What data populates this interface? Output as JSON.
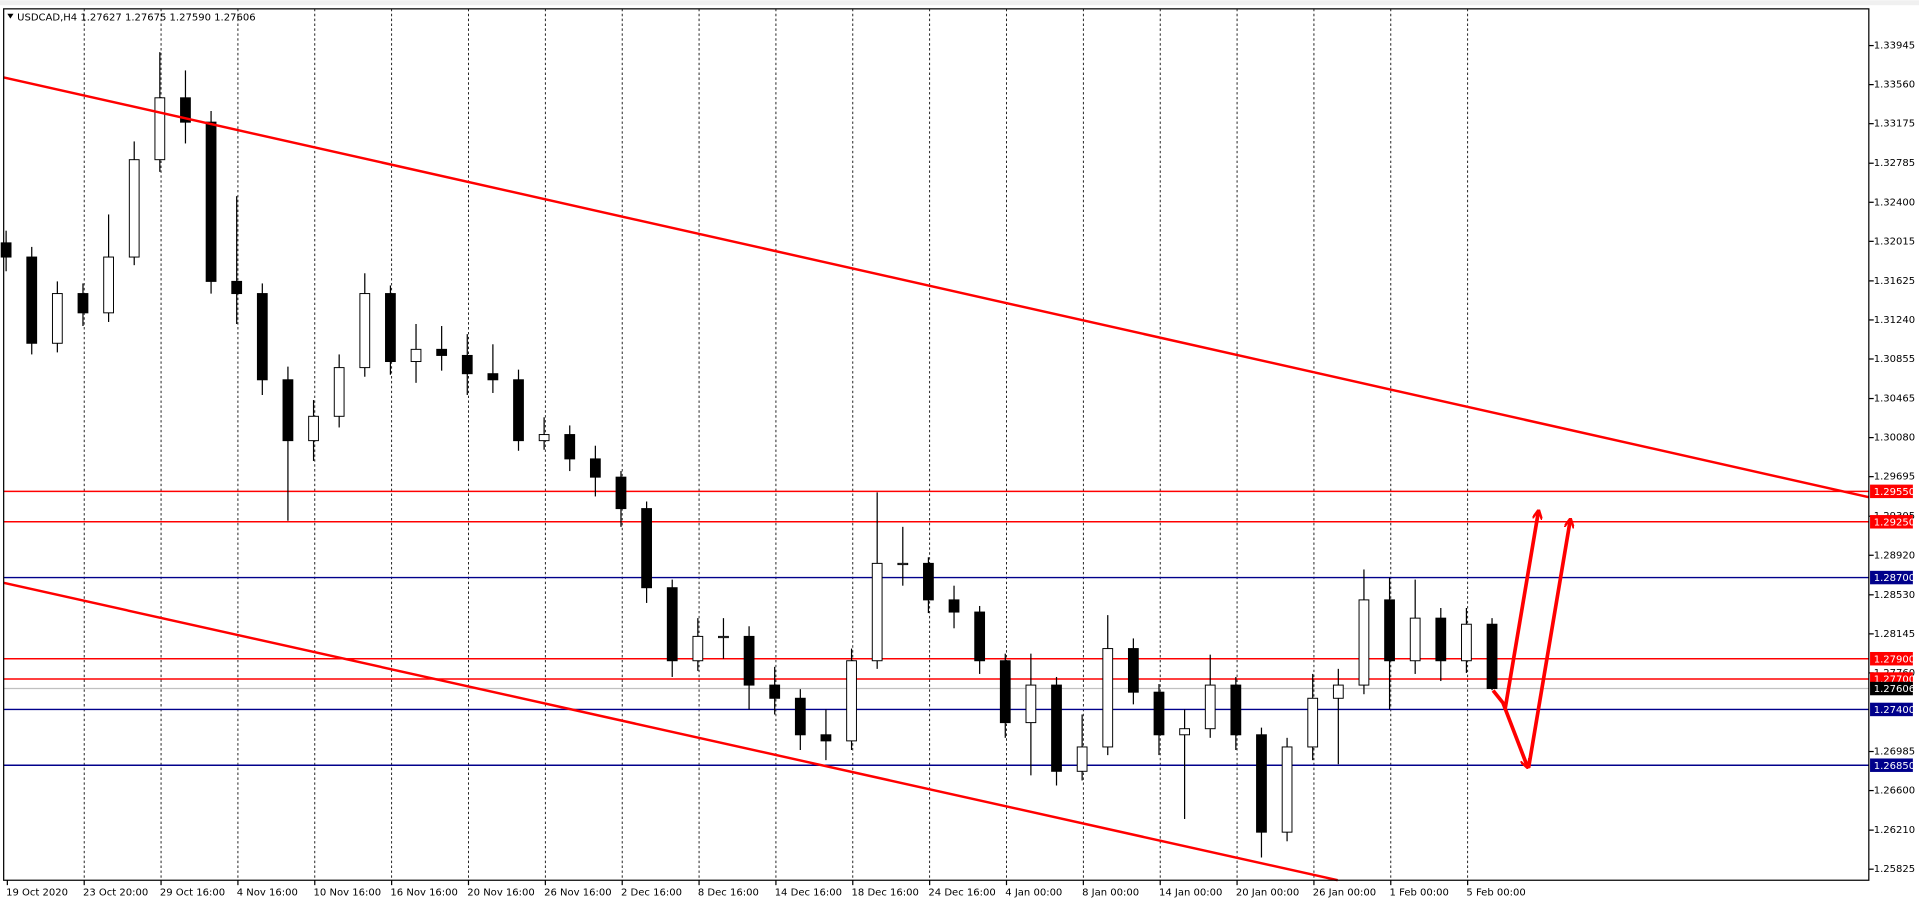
{
  "chart_data": {
    "type": "candlestick",
    "title": "USDCAD,H4  1.27627 1.27675 1.27590 1.27606",
    "categories": [
      "19 Oct 2020",
      "23 Oct 20:00",
      "29 Oct 16:00",
      "4 Nov 16:00",
      "10 Nov 16:00",
      "16 Nov 16:00",
      "20 Nov 16:00",
      "26 Nov 16:00",
      "2 Dec 16:00",
      "8 Dec 16:00",
      "14 Dec 16:00",
      "18 Dec 16:00",
      "24 Dec 16:00",
      "4 Jan 00:00",
      "8 Jan 00:00",
      "14 Jan 00:00",
      "20 Jan 00:00",
      "26 Jan 00:00",
      "1 Feb 00:00",
      "5 Feb 00:00"
    ],
    "candles": [
      [
        1.32,
        1.3212,
        1.3172,
        1.3186
      ],
      [
        1.3186,
        1.3196,
        1.309,
        1.3101
      ],
      [
        1.3101,
        1.3162,
        1.3092,
        1.315
      ],
      [
        1.315,
        1.316,
        1.3118,
        1.3131
      ],
      [
        1.3131,
        1.3228,
        1.3122,
        1.3186
      ],
      [
        1.3186,
        1.33,
        1.3178,
        1.3282
      ],
      [
        1.3282,
        1.3388,
        1.327,
        1.3343
      ],
      [
        1.3343,
        1.337,
        1.3298,
        1.3319
      ],
      [
        1.3319,
        1.333,
        1.315,
        1.3162
      ],
      [
        1.3162,
        1.3246,
        1.312,
        1.315
      ],
      [
        1.315,
        1.316,
        1.305,
        1.3065
      ],
      [
        1.3065,
        1.3078,
        1.2926,
        1.3005
      ],
      [
        1.3005,
        1.3045,
        1.2985,
        1.3029
      ],
      [
        1.3029,
        1.309,
        1.3018,
        1.3077
      ],
      [
        1.3077,
        1.317,
        1.3068,
        1.315
      ],
      [
        1.315,
        1.3158,
        1.307,
        1.3083
      ],
      [
        1.3083,
        1.312,
        1.3062,
        1.3095
      ],
      [
        1.3095,
        1.3118,
        1.3074,
        1.3089
      ],
      [
        1.3089,
        1.311,
        1.305,
        1.3071
      ],
      [
        1.3071,
        1.31,
        1.3052,
        1.3065
      ],
      [
        1.3065,
        1.3075,
        1.2995,
        1.3005
      ],
      [
        1.3005,
        1.3028,
        1.2996,
        1.3011
      ],
      [
        1.3011,
        1.302,
        1.2975,
        1.2987
      ],
      [
        1.2987,
        1.3,
        1.295,
        1.2969
      ],
      [
        1.2969,
        1.2975,
        1.292,
        1.2938
      ],
      [
        1.2938,
        1.2945,
        1.2845,
        1.286
      ],
      [
        1.286,
        1.2868,
        1.2772,
        1.2788
      ],
      [
        1.2788,
        1.283,
        1.2778,
        1.2812
      ],
      [
        1.2812,
        1.283,
        1.279,
        1.2812
      ],
      [
        1.2812,
        1.2822,
        1.274,
        1.2764
      ],
      [
        1.2764,
        1.2782,
        1.2735,
        1.2751
      ],
      [
        1.2751,
        1.276,
        1.27,
        1.2715
      ],
      [
        1.2715,
        1.274,
        1.269,
        1.2709
      ],
      [
        1.2709,
        1.28,
        1.27,
        1.2788
      ],
      [
        1.2788,
        1.2954,
        1.278,
        1.2884
      ],
      [
        1.2884,
        1.292,
        1.2862,
        1.2884
      ],
      [
        1.2884,
        1.289,
        1.2835,
        1.2848
      ],
      [
        1.2848,
        1.2862,
        1.282,
        1.2836
      ],
      [
        1.2836,
        1.2842,
        1.2775,
        1.2788
      ],
      [
        1.2788,
        1.2795,
        1.2712,
        1.2727
      ],
      [
        1.2727,
        1.2795,
        1.2675,
        1.2764
      ],
      [
        1.2764,
        1.2772,
        1.2665,
        1.2679
      ],
      [
        1.2679,
        1.2735,
        1.267,
        1.2703
      ],
      [
        1.2703,
        1.2833,
        1.2695,
        1.28
      ],
      [
        1.28,
        1.281,
        1.2745,
        1.2757
      ],
      [
        1.2757,
        1.2765,
        1.2695,
        1.2715
      ],
      [
        1.2715,
        1.274,
        1.2632,
        1.2721
      ],
      [
        1.2721,
        1.2794,
        1.2712,
        1.2764
      ],
      [
        1.2764,
        1.2772,
        1.27,
        1.2715
      ],
      [
        1.2715,
        1.2722,
        1.2594,
        1.2619
      ],
      [
        1.2619,
        1.2712,
        1.261,
        1.2703
      ],
      [
        1.2703,
        1.2775,
        1.269,
        1.2751
      ],
      [
        1.2751,
        1.278,
        1.2686,
        1.2764
      ],
      [
        1.2764,
        1.2878,
        1.2755,
        1.2848
      ],
      [
        1.2848,
        1.287,
        1.274,
        1.2788
      ],
      [
        1.2788,
        1.2868,
        1.2775,
        1.283
      ],
      [
        1.283,
        1.284,
        1.2768,
        1.2788
      ],
      [
        1.2788,
        1.284,
        1.2776,
        1.2824
      ],
      [
        1.2824,
        1.283,
        1.2759,
        1.27606
      ]
    ],
    "candles_per_category": 3,
    "ylim": [
      1.25716,
      1.34307
    ],
    "yticks": [
      1.33945,
      {
        "value": 1.3356,
        "label": "1.33560"
      },
      1.33175,
      1.32785,
      {
        "value": 1.324,
        "label": "1.32400"
      },
      1.32015,
      1.31625,
      {
        "value": 1.3124,
        "label": "1.31240"
      },
      1.30855,
      1.30465,
      {
        "value": 1.3008,
        "label": "1.30080"
      },
      1.29695,
      1.29305,
      {
        "value": 1.2892,
        "label": "1.28920"
      },
      {
        "value": 1.2853,
        "label": "1.28530"
      },
      1.28145,
      {
        "value": 1.2776,
        "label": "1.27760"
      },
      1.26985,
      {
        "value": 1.266,
        "label": "1.26600"
      },
      {
        "value": 1.2621,
        "label": "1.26210"
      },
      1.25825
    ],
    "levels": [
      {
        "value": 1.2955,
        "label": "1.29550",
        "color": "#ff0000"
      },
      {
        "value": 1.2925,
        "label": "1.29250",
        "color": "#ff0000"
      },
      {
        "value": 1.287,
        "label": "1.28700",
        "color": "#00008b"
      },
      {
        "value": 1.279,
        "label": "1.27900",
        "color": "#ff0000"
      },
      {
        "value": 1.277,
        "label": "1.27700",
        "color": "#ff0000"
      },
      {
        "value": 1.274,
        "label": "1.27400",
        "color": "#00008b"
      },
      {
        "value": 1.2685,
        "label": "1.26850",
        "color": "#00008b"
      }
    ],
    "current_price": 1.27606,
    "grid": true
  }
}
